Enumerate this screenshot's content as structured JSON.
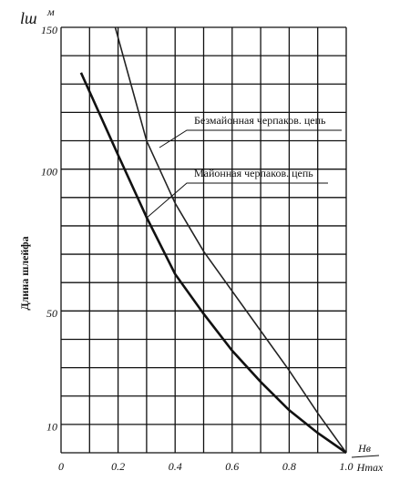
{
  "chart_data": {
    "type": "line",
    "y_label": "Длина шлейфа",
    "y_symbol": "lш",
    "y_unit": "м",
    "x_label_num": "Hв",
    "x_label_den": "Hmax",
    "xlim": [
      0,
      1
    ],
    "ylim": [
      0,
      150
    ],
    "xticks": [
      0,
      0.2,
      0.4,
      0.6,
      0.8,
      {
        "value": 1,
        "label": "1.0"
      }
    ],
    "yticks": [
      10,
      50,
      100,
      150
    ],
    "grid": true,
    "xgrid_step": 0.1,
    "ygrid_step": 10,
    "series": [
      {
        "name": "Безмайонная черпаков. цепь",
        "color": "#222222",
        "x": [
          0.19,
          0.3,
          0.4,
          0.5,
          0.6,
          0.7,
          0.8,
          0.9,
          1.0
        ],
        "values": [
          150,
          110,
          88,
          71,
          57,
          43,
          29,
          14,
          0
        ]
      },
      {
        "name": "Майонная черпаков. цепь",
        "color": "#111111",
        "x": [
          0.07,
          0.2,
          0.3,
          0.4,
          0.5,
          0.6,
          0.7,
          0.8,
          0.9,
          1.0
        ],
        "values": [
          134,
          105,
          83,
          63,
          49,
          36,
          25,
          15,
          7,
          0
        ]
      }
    ]
  }
}
